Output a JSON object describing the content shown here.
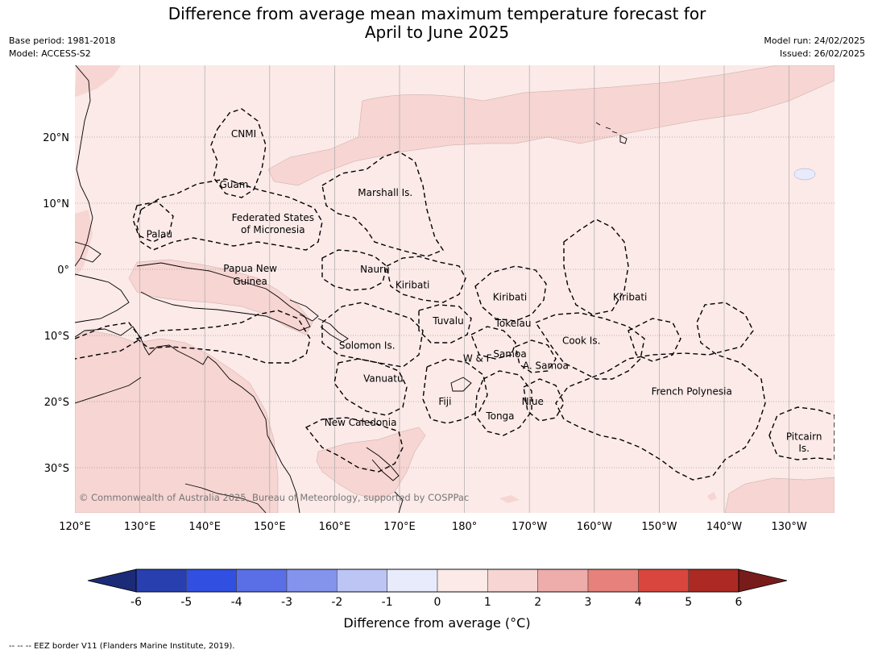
{
  "title": {
    "line1": "Difference from average mean maximum temperature forecast for",
    "line2": "April to June 2025"
  },
  "meta": {
    "base_period": "Base period: 1981-2018",
    "model": "Model: ACCESS-S2",
    "model_run": "Model run: 24/02/2025",
    "issued": "Issued: 26/02/2025"
  },
  "copyright": "© Commonwealth of Australia 2025, Bureau of Meteorology, supported by COSPPac",
  "axes": {
    "lon_ticks": [
      "120°E",
      "130°E",
      "140°E",
      "150°E",
      "160°E",
      "170°E",
      "180°",
      "170°W",
      "160°W",
      "150°W",
      "140°W",
      "130°W"
    ],
    "lat_ticks": [
      "20°N",
      "10°N",
      "0°",
      "10°S",
      "20°S",
      "30°S"
    ]
  },
  "regions": [
    {
      "name": "CNMI",
      "lon": 146,
      "lat": 20.5
    },
    {
      "name": "Guam",
      "lon": 144.5,
      "lat": 12.8
    },
    {
      "name": "Marshall Is.",
      "lon": 167.8,
      "lat": 11.6
    },
    {
      "name": "Federated States",
      "lon": 150.5,
      "lat": 7.8
    },
    {
      "name": "of Micronesia",
      "lon": 150.5,
      "lat": 6
    },
    {
      "name": "Palau",
      "lon": 133,
      "lat": 5.3
    },
    {
      "name": "Papua New",
      "lon": 147,
      "lat": 0.1
    },
    {
      "name": "Guinea",
      "lon": 147,
      "lat": -1.8
    },
    {
      "name": "Nauru",
      "lon": 166.2,
      "lat": 0
    },
    {
      "name": "Kiribati",
      "lon": 172,
      "lat": -2.4
    },
    {
      "name": "Kiribati",
      "lon": 187,
      "lat": -4.2
    },
    {
      "name": "Kiribati",
      "lon": 205.5,
      "lat": -4.2
    },
    {
      "name": "Tuvalu",
      "lon": 177.5,
      "lat": -7.8
    },
    {
      "name": "Tokelau",
      "lon": 187.5,
      "lat": -8.2
    },
    {
      "name": "Cook Is.",
      "lon": 198,
      "lat": -10.8
    },
    {
      "name": "Solomon Is.",
      "lon": 165,
      "lat": -11.5
    },
    {
      "name": "Samoa",
      "lon": 187,
      "lat": -12.8
    },
    {
      "name": "W & F",
      "lon": 182,
      "lat": -13.5
    },
    {
      "name": "A. Samoa",
      "lon": 192.5,
      "lat": -14.6
    },
    {
      "name": "Vanuatu",
      "lon": 167.5,
      "lat": -16.5
    },
    {
      "name": "Fiji",
      "lon": 177,
      "lat": -20
    },
    {
      "name": "Niue",
      "lon": 190.5,
      "lat": -20
    },
    {
      "name": "Tonga",
      "lon": 185.5,
      "lat": -22.2
    },
    {
      "name": "French Polynesia",
      "lon": 215,
      "lat": -18.5
    },
    {
      "name": "New Caledonia",
      "lon": 164,
      "lat": -23.2
    },
    {
      "name": "Pitcairn",
      "lon": 232.3,
      "lat": -25.3
    },
    {
      "name": "Is.",
      "lon": 232.3,
      "lat": -27.1
    }
  ],
  "colorbar": {
    "title": "Difference from average (°C)",
    "tick_labels": [
      "-6",
      "-5",
      "-4",
      "-3",
      "-2",
      "-1",
      "0",
      "1",
      "2",
      "3",
      "4",
      "5",
      "6"
    ],
    "colors": [
      "#1b2b77",
      "#283fb0",
      "#3150e1",
      "#5a6fe6",
      "#8493ec",
      "#bdc5f5",
      "#e8ebfc",
      "#fbeae8",
      "#f6d5d2",
      "#eeadaa",
      "#e6827b",
      "#d9463d",
      "#ad2a24",
      "#771c1b"
    ]
  },
  "footnote": "-- -- -- EEZ border V11 (Flanders Marine Institute, 2019)."
}
